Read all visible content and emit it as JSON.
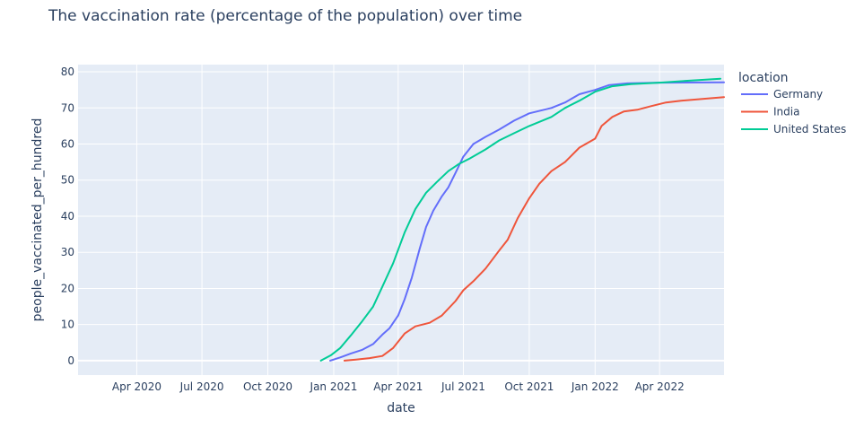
{
  "chart_data": {
    "type": "line",
    "title": "The vaccination rate (percentage of the population) over time",
    "xlabel": "date",
    "ylabel": "people_vaccinated_per_hundred",
    "legend_title": "location",
    "legend_placement": "right",
    "grid": true,
    "xlim": [
      "2020-01-10",
      "2022-06-30"
    ],
    "ylim": [
      -4,
      82
    ],
    "x_ticks": [
      {
        "date": "2020-04-01",
        "label": "Apr 2020"
      },
      {
        "date": "2020-07-01",
        "label": "Jul 2020"
      },
      {
        "date": "2020-10-01",
        "label": "Oct 2020"
      },
      {
        "date": "2021-01-01",
        "label": "Jan 2021"
      },
      {
        "date": "2021-04-01",
        "label": "Apr 2021"
      },
      {
        "date": "2021-07-01",
        "label": "Jul 2021"
      },
      {
        "date": "2021-10-01",
        "label": "Oct 2021"
      },
      {
        "date": "2022-01-01",
        "label": "Jan 2022"
      },
      {
        "date": "2022-04-01",
        "label": "Apr 2022"
      }
    ],
    "y_ticks": [
      0,
      10,
      20,
      30,
      40,
      50,
      60,
      70,
      80
    ],
    "series": [
      {
        "name": "Germany",
        "color": "#636efa",
        "points": [
          [
            "2020-12-27",
            0.0
          ],
          [
            "2021-01-10",
            0.9
          ],
          [
            "2021-01-25",
            2.0
          ],
          [
            "2021-02-10",
            3.0
          ],
          [
            "2021-02-25",
            4.6
          ],
          [
            "2021-03-10",
            7.2
          ],
          [
            "2021-03-20",
            9.0
          ],
          [
            "2021-04-01",
            12.5
          ],
          [
            "2021-04-10",
            17.0
          ],
          [
            "2021-04-20",
            23.0
          ],
          [
            "2021-05-01",
            31.0
          ],
          [
            "2021-05-10",
            37.0
          ],
          [
            "2021-05-20",
            41.5
          ],
          [
            "2021-06-01",
            45.5
          ],
          [
            "2021-06-10",
            48.0
          ],
          [
            "2021-06-20",
            52.0
          ],
          [
            "2021-07-01",
            56.5
          ],
          [
            "2021-07-15",
            60.0
          ],
          [
            "2021-08-01",
            62.0
          ],
          [
            "2021-08-20",
            64.0
          ],
          [
            "2021-09-10",
            66.5
          ],
          [
            "2021-10-01",
            68.5
          ],
          [
            "2021-11-01",
            70.0
          ],
          [
            "2021-11-20",
            71.5
          ],
          [
            "2021-12-10",
            73.8
          ],
          [
            "2022-01-01",
            75.0
          ],
          [
            "2022-01-20",
            76.3
          ],
          [
            "2022-02-15",
            76.8
          ],
          [
            "2022-04-01",
            77.0
          ],
          [
            "2022-06-30",
            77.1
          ]
        ]
      },
      {
        "name": "India",
        "color": "#ef553b",
        "points": [
          [
            "2021-01-16",
            0.0
          ],
          [
            "2021-02-01",
            0.3
          ],
          [
            "2021-02-20",
            0.7
          ],
          [
            "2021-03-10",
            1.3
          ],
          [
            "2021-03-25",
            3.5
          ],
          [
            "2021-04-10",
            7.5
          ],
          [
            "2021-04-25",
            9.5
          ],
          [
            "2021-05-15",
            10.5
          ],
          [
            "2021-06-01",
            12.5
          ],
          [
            "2021-06-20",
            16.5
          ],
          [
            "2021-07-01",
            19.5
          ],
          [
            "2021-07-15",
            22.0
          ],
          [
            "2021-08-01",
            25.5
          ],
          [
            "2021-08-20",
            30.5
          ],
          [
            "2021-09-01",
            33.5
          ],
          [
            "2021-09-15",
            39.5
          ],
          [
            "2021-10-01",
            45.0
          ],
          [
            "2021-10-15",
            49.0
          ],
          [
            "2021-11-01",
            52.5
          ],
          [
            "2021-11-20",
            55.0
          ],
          [
            "2021-12-10",
            59.0
          ],
          [
            "2022-01-01",
            61.5
          ],
          [
            "2022-01-10",
            65.0
          ],
          [
            "2022-01-25",
            67.5
          ],
          [
            "2022-02-10",
            69.0
          ],
          [
            "2022-03-01",
            69.5
          ],
          [
            "2022-03-20",
            70.5
          ],
          [
            "2022-04-10",
            71.5
          ],
          [
            "2022-05-01",
            72.0
          ],
          [
            "2022-06-30",
            73.0
          ]
        ]
      },
      {
        "name": "United States",
        "color": "#00cc96",
        "points": [
          [
            "2020-12-14",
            0.0
          ],
          [
            "2020-12-28",
            1.5
          ],
          [
            "2021-01-10",
            3.5
          ],
          [
            "2021-01-25",
            7.0
          ],
          [
            "2021-02-10",
            11.0
          ],
          [
            "2021-02-25",
            15.0
          ],
          [
            "2021-03-10",
            20.5
          ],
          [
            "2021-03-25",
            27.0
          ],
          [
            "2021-04-10",
            35.5
          ],
          [
            "2021-04-25",
            42.0
          ],
          [
            "2021-05-10",
            46.5
          ],
          [
            "2021-05-25",
            49.5
          ],
          [
            "2021-06-10",
            52.5
          ],
          [
            "2021-06-25",
            54.5
          ],
          [
            "2021-07-10",
            56.0
          ],
          [
            "2021-08-01",
            58.5
          ],
          [
            "2021-08-20",
            61.0
          ],
          [
            "2021-09-10",
            63.0
          ],
          [
            "2021-10-01",
            65.0
          ],
          [
            "2021-11-01",
            67.5
          ],
          [
            "2021-11-20",
            70.0
          ],
          [
            "2021-12-10",
            72.0
          ],
          [
            "2022-01-01",
            74.5
          ],
          [
            "2022-01-25",
            76.0
          ],
          [
            "2022-02-20",
            76.6
          ],
          [
            "2022-04-01",
            77.0
          ],
          [
            "2022-05-15",
            77.6
          ],
          [
            "2022-06-25",
            78.1
          ]
        ]
      }
    ]
  },
  "colors": {
    "plot_background": "#e5ecf6",
    "grid": "#ffffff",
    "text": "#2a3f5f"
  }
}
